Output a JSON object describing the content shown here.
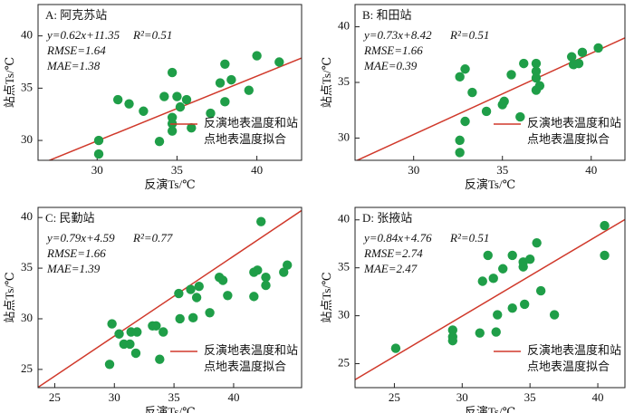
{
  "chart_data": [
    {
      "type": "scatter",
      "title": "A: 阿克苏站",
      "xlabel": "反演Ts/℃",
      "ylabel": "站点Ts/℃",
      "annotations": [
        "y=0.62x+11.35",
        "R²=0.51",
        "RMSE=1.64",
        "MAE=1.38"
      ],
      "color": "#1f9e48",
      "x": [
        30.1,
        30.1,
        31.3,
        32.0,
        32.9,
        33.9,
        34.2,
        34.7,
        34.7,
        34.7,
        34.7,
        35.0,
        35.2,
        35.6,
        35.9,
        37.1,
        37.7,
        38.0,
        38.0,
        38.4,
        39.5,
        40.0,
        41.4
      ],
      "values": [
        30.0,
        28.7,
        33.9,
        33.5,
        32.8,
        29.9,
        34.2,
        36.5,
        32.2,
        31.6,
        30.9,
        34.2,
        33.2,
        33.9,
        31.2,
        32.6,
        35.5,
        37.3,
        33.7,
        35.8,
        34.8,
        38.1,
        37.5
      ],
      "fit": {
        "slope": 0.62,
        "intercept": 11.35,
        "color": "#d0392b",
        "label": [
          "反演地表温度和站",
          "点地表温度拟合"
        ]
      },
      "xlim": [
        26.3,
        42.8
      ],
      "xticks": [
        30,
        35,
        40
      ],
      "ylim": [
        28.1,
        43
      ],
      "yticks": [
        30,
        35,
        40
      ]
    },
    {
      "type": "scatter",
      "title": "B: 和田站",
      "xlabel": "反演Ts/℃",
      "ylabel": "站点Ts/℃",
      "annotations": [
        "y=0.73x+8.42",
        "R²=0.51",
        "RMSE=1.66",
        "MAE=0.39"
      ],
      "color": "#1f9e48",
      "x": [
        32.6,
        32.9,
        32.6,
        32.6,
        32.9,
        33.3,
        34.1,
        35.0,
        35.1,
        35.5,
        36.0,
        36.2,
        36.9,
        36.9,
        36.9,
        36.9,
        37.1,
        38.9,
        39.0,
        39.3,
        39.5,
        40.4
      ],
      "values": [
        35.5,
        36.2,
        29.8,
        28.7,
        31.5,
        34.1,
        32.4,
        33.0,
        33.3,
        35.7,
        31.9,
        36.7,
        36.7,
        36.0,
        35.4,
        34.3,
        34.7,
        37.3,
        36.6,
        36.7,
        37.7,
        38.1
      ],
      "fit": {
        "slope": 0.73,
        "intercept": 8.42,
        "color": "#d0392b",
        "label": [
          "反演地表温度和站",
          "点地表温度拟合"
        ]
      },
      "xlim": [
        26.7,
        41.9
      ],
      "xticks": [
        30,
        35,
        40
      ],
      "ylim": [
        28,
        42
      ],
      "yticks": [
        30,
        35,
        40
      ]
    },
    {
      "type": "scatter",
      "title": "C: 民勤站",
      "xlabel": "反演Ts/℃",
      "ylabel": "站点Ts/℃",
      "annotations": [
        "y=0.79x+4.59",
        "R²=0.77",
        "RMSE=1.66",
        "MAE=1.39"
      ],
      "color": "#1f9e48",
      "x": [
        29.8,
        29.6,
        30.4,
        30.8,
        31.3,
        31.4,
        31.8,
        31.9,
        33.2,
        33.5,
        33.8,
        34.1,
        35.4,
        35.5,
        36.4,
        36.6,
        36.9,
        37.1,
        38.0,
        38.8,
        39.1,
        39.5,
        41.7,
        41.7,
        42.0,
        42.3,
        42.7,
        42.7,
        44.2,
        44.5
      ],
      "values": [
        29.5,
        25.5,
        28.5,
        27.5,
        27.5,
        28.7,
        26.6,
        28.7,
        29.3,
        29.3,
        26.0,
        28.7,
        32.5,
        30.0,
        32.9,
        30.1,
        32.1,
        33.2,
        30.6,
        34.1,
        33.8,
        32.3,
        32.2,
        34.6,
        34.8,
        39.6,
        34.1,
        33.3,
        34.6,
        35.3
      ],
      "fit": {
        "slope": 0.79,
        "intercept": 4.59,
        "color": "#d0392b",
        "label": [
          "反演地表温度和站",
          "点地表温度拟合"
        ]
      },
      "xlim": [
        23.6,
        45.7
      ],
      "xticks": [
        25,
        30,
        35,
        40
      ],
      "ylim": [
        23.2,
        41
      ],
      "yticks": [
        25,
        30,
        35,
        40
      ]
    },
    {
      "type": "scatter",
      "title": "D: 张掖站",
      "xlabel": "反演Ts/℃",
      "ylabel": "站点Ts/℃",
      "annotations": [
        "y=0.84x+4.76",
        "R²=0.51",
        "RMSE=2.74",
        "MAE=2.47"
      ],
      "color": "#1f9e48",
      "x": [
        25.1,
        29.3,
        29.3,
        29.3,
        31.3,
        31.5,
        31.9,
        32.3,
        32.5,
        32.6,
        33.0,
        33.7,
        33.7,
        34.5,
        34.5,
        34.6,
        35.0,
        35.5,
        35.8,
        36.8,
        40.5,
        40.5
      ],
      "values": [
        26.6,
        28.5,
        27.8,
        27.4,
        28.2,
        33.6,
        36.3,
        33.9,
        28.3,
        30.1,
        34.9,
        36.3,
        30.8,
        35.6,
        35.1,
        31.2,
        35.9,
        37.6,
        32.6,
        30.1,
        39.4,
        36.3
      ],
      "fit": {
        "slope": 0.84,
        "intercept": 4.76,
        "color": "#d0392b",
        "label": [
          "反演地表温度和站",
          "点地表温度拟合"
        ]
      },
      "xlim": [
        22.1,
        42
      ],
      "xticks": [
        25,
        30,
        35,
        40
      ],
      "ylim": [
        22.5,
        41.3
      ],
      "yticks": [
        25,
        30,
        35,
        40
      ]
    }
  ]
}
